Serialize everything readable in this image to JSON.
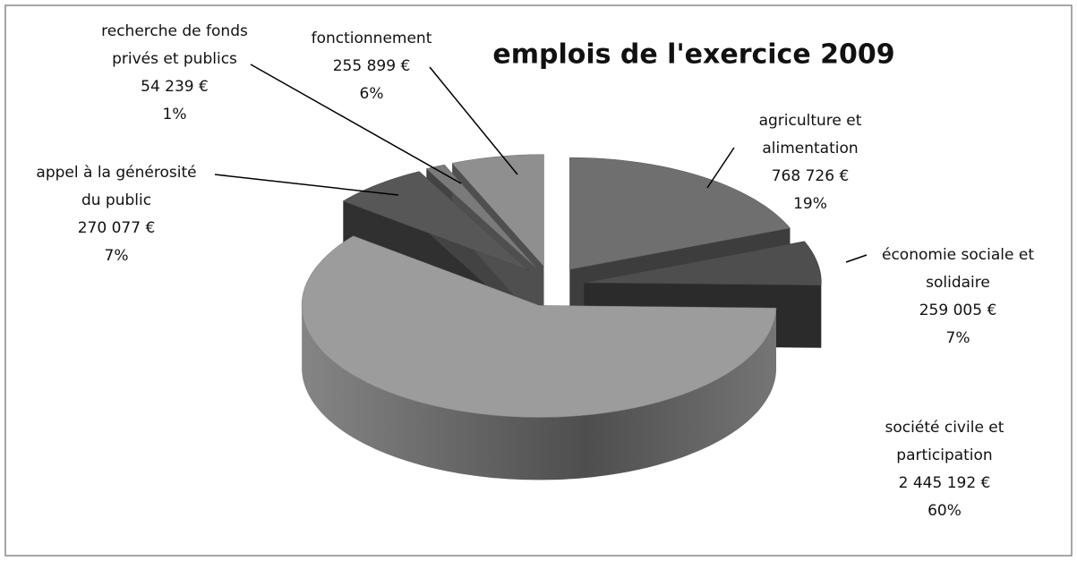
{
  "chart_data": {
    "type": "pie3d",
    "title": "emplois de l'exercice 2009",
    "categories": [
      [
        "agriculture et",
        "alimentation"
      ],
      [
        "économie sociale et",
        "solidaire"
      ],
      [
        "société civile et",
        "participation"
      ],
      [
        "appel à la générosité",
        "du public"
      ],
      [
        "recherche de fonds",
        "privés et publics"
      ],
      [
        "fonctionnement"
      ]
    ],
    "values": [
      768726,
      259005,
      2445192,
      270077,
      54239,
      255899
    ],
    "value_labels": [
      "768 726 €",
      "259 005 €",
      "2 445 192 €",
      "270 077 €",
      "54 239 €",
      "255 899 €"
    ],
    "percentages": [
      19,
      7,
      60,
      7,
      1,
      6
    ],
    "percentage_labels": [
      "19%",
      "7%",
      "60%",
      "7%",
      "1%",
      "6%"
    ],
    "colors": [
      "#6f6f6f",
      "#4e4e4e",
      "#9c9c9c",
      "#575757",
      "#7a7a7a",
      "#8f8f8f"
    ]
  }
}
